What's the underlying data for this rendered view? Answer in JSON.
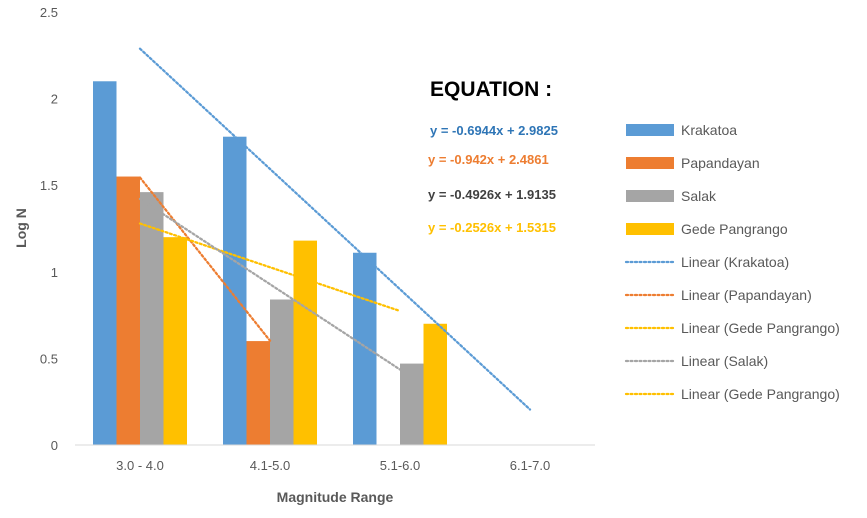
{
  "chart_data": {
    "type": "bar",
    "categories": [
      "3.0 - 4.0",
      "4.1-5.0",
      "5.1-6.0",
      "6.1-7.0"
    ],
    "series": [
      {
        "name": "Krakatoa",
        "color": "#5b9bd5",
        "values": [
          2.1,
          1.78,
          1.11,
          null
        ]
      },
      {
        "name": "Papandayan",
        "color": "#ed7d31",
        "values": [
          1.55,
          0.6,
          null,
          null
        ]
      },
      {
        "name": "Salak",
        "color": "#a5a5a5",
        "values": [
          1.46,
          0.84,
          0.47,
          null
        ]
      },
      {
        "name": "Gede Pangrango",
        "color": "#ffc000",
        "values": [
          1.2,
          1.18,
          0.7,
          null
        ]
      }
    ],
    "trendlines": [
      {
        "name": "Linear (Krakatoa)",
        "color": "#5b9bd5",
        "slope": -0.6944,
        "intercept": 2.9825,
        "x_range": [
          1,
          4
        ]
      },
      {
        "name": "Linear (Papandayan)",
        "color": "#ed7d31",
        "slope": -0.942,
        "intercept": 2.4861,
        "x_range": [
          1,
          2
        ]
      },
      {
        "name": "Linear (Gede Pangrango)",
        "color": "#ffc000",
        "slope": -0.2526,
        "intercept": 1.5315,
        "x_range": [
          1,
          3
        ]
      },
      {
        "name": "Linear (Salak)",
        "color": "#a5a5a5",
        "slope": -0.4926,
        "intercept": 1.9135,
        "x_range": [
          1,
          3
        ]
      },
      {
        "name": "Linear (Gede Pangrango)",
        "color": "#ffc000",
        "slope": -0.2526,
        "intercept": 1.5315,
        "x_range": [
          1,
          3
        ],
        "duplicate": true
      }
    ],
    "xlabel": "Magnitude Range",
    "ylabel": "Log N",
    "ylim": [
      0,
      2.5
    ],
    "yticks": [
      "0",
      "0.5",
      "1",
      "1.5",
      "2",
      "2.5"
    ],
    "grid": false,
    "legend_position": "right",
    "annotation": {
      "title": "EQUATION :",
      "equations": [
        {
          "text": "y = -0.6944x + 2.9825",
          "color": "#2e75b6"
        },
        {
          "text": "y = -0.942x + 2.4861",
          "color": "#ed7d31"
        },
        {
          "text": "y = -0.4926x + 1.9135",
          "color": "#404040"
        },
        {
          "text": "y = -0.2526x + 1.5315",
          "color": "#ffc000"
        }
      ]
    }
  }
}
